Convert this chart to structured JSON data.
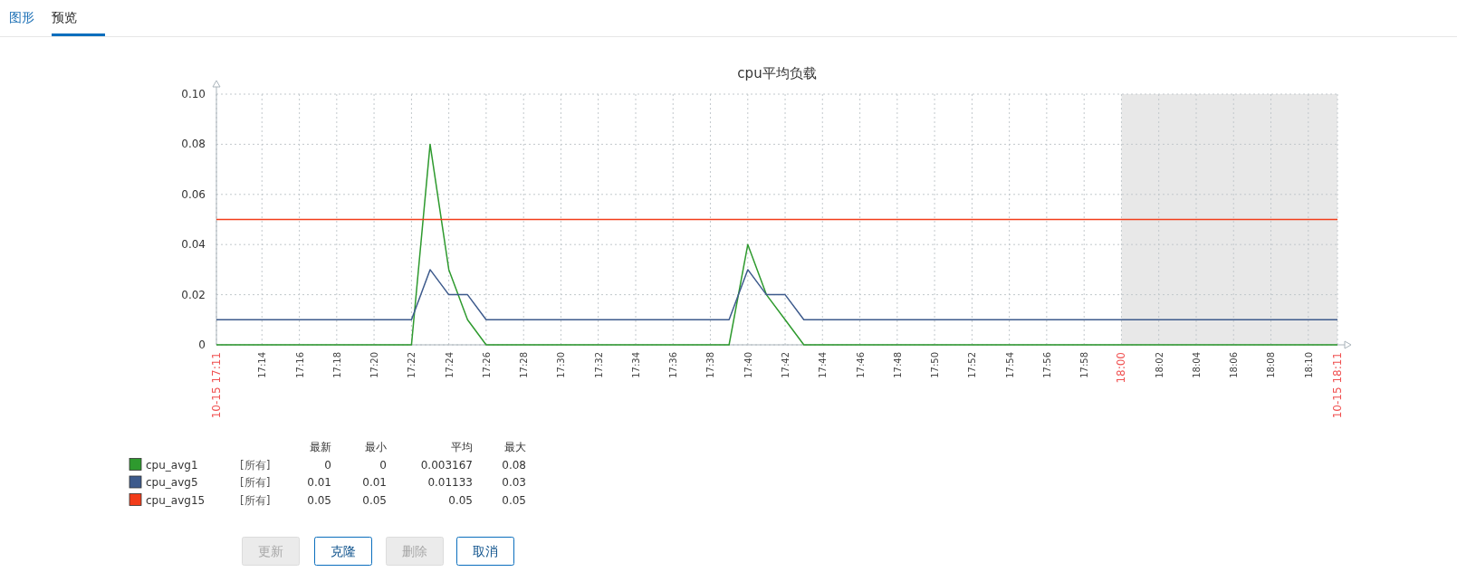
{
  "chart_data": {
    "type": "line",
    "title": "cpu平均负载",
    "x": [
      17.1927,
      17.3667,
      17.3833,
      17.4,
      17.4167,
      17.4333,
      17.65,
      17.6667,
      17.6833,
      17.7,
      17.7167,
      18.1927
    ],
    "series": [
      {
        "name": "cpu_avg1",
        "color": "#2e9a2e",
        "values": [
          0,
          0,
          0.08,
          0.03,
          0.01,
          0,
          0,
          0.04,
          0.02,
          0.01,
          0,
          0
        ]
      },
      {
        "name": "cpu_avg5",
        "color": "#3d5a8c",
        "values": [
          0.01,
          0.01,
          0.03,
          0.02,
          0.02,
          0.01,
          0.01,
          0.03,
          0.02,
          0.02,
          0.01,
          0.01
        ]
      },
      {
        "name": "cpu_avg15",
        "color": "#f23c1a",
        "values": [
          0.05,
          0.05,
          0.05,
          0.05,
          0.05,
          0.05,
          0.05,
          0.05,
          0.05,
          0.05,
          0.05,
          0.05
        ]
      }
    ],
    "xlim": [
      17.1927,
      18.1927
    ],
    "xticks": [
      {
        "value": 17.1927,
        "label": "10-15 17:11"
      },
      {
        "value": 17.2333,
        "label": "17:14"
      },
      {
        "value": 17.2667,
        "label": "17:16"
      },
      {
        "value": 17.3,
        "label": "17:18"
      },
      {
        "value": 17.3333,
        "label": "17:20"
      },
      {
        "value": 17.3667,
        "label": "17:22"
      },
      {
        "value": 17.4,
        "label": "17:24"
      },
      {
        "value": 17.4333,
        "label": "17:26"
      },
      {
        "value": 17.4667,
        "label": "17:28"
      },
      {
        "value": 17.5,
        "label": "17:30"
      },
      {
        "value": 17.5333,
        "label": "17:32"
      },
      {
        "value": 17.5667,
        "label": "17:34"
      },
      {
        "value": 17.6,
        "label": "17:36"
      },
      {
        "value": 17.6333,
        "label": "17:38"
      },
      {
        "value": 17.6667,
        "label": "17:40"
      },
      {
        "value": 17.7,
        "label": "17:42"
      },
      {
        "value": 17.7333,
        "label": "17:44"
      },
      {
        "value": 17.7667,
        "label": "17:46"
      },
      {
        "value": 17.8,
        "label": "17:48"
      },
      {
        "value": 17.8333,
        "label": "17:50"
      },
      {
        "value": 17.8667,
        "label": "17:52"
      },
      {
        "value": 17.9,
        "label": "17:54"
      },
      {
        "value": 17.9333,
        "label": "17:56"
      },
      {
        "value": 17.9667,
        "label": "17:58"
      },
      {
        "value": 18,
        "label": "18:00"
      },
      {
        "value": 18.0333,
        "label": "18:02"
      },
      {
        "value": 18.0667,
        "label": "18:04"
      },
      {
        "value": 18.1,
        "label": "18:06"
      },
      {
        "value": 18.1333,
        "label": "18:08"
      },
      {
        "value": 18.1667,
        "label": "18:10"
      },
      {
        "value": 18.1927,
        "label": "10-15 18:11"
      }
    ],
    "ylim": [
      0,
      0.1
    ],
    "yticks": [
      0,
      0.02,
      0.04,
      0.06,
      {
        "value": 0.08,
        "label": "0.08"
      },
      {
        "value": 0.1,
        "label": "0.10"
      }
    ],
    "bands": [
      {
        "axis": "x",
        "from": 18,
        "to": 18.1927,
        "color": "#e8e8e8"
      }
    ],
    "grid": true,
    "legend": "bottom left",
    "line_style": "solid",
    "marker": "none",
    "annotations": [
      "最新",
      "最小",
      "平均",
      "最大",
      "[所有]",
      "0",
      "0",
      "0.003167",
      "0.08",
      "[所有]",
      "0.01",
      "0.01",
      "0.01133",
      "0.03",
      "[所有]",
      "0.05",
      "0.05",
      "0.05",
      "0.05",
      "图形",
      "预览",
      "更新",
      "克隆",
      "删除",
      "取消"
    ]
  }
}
